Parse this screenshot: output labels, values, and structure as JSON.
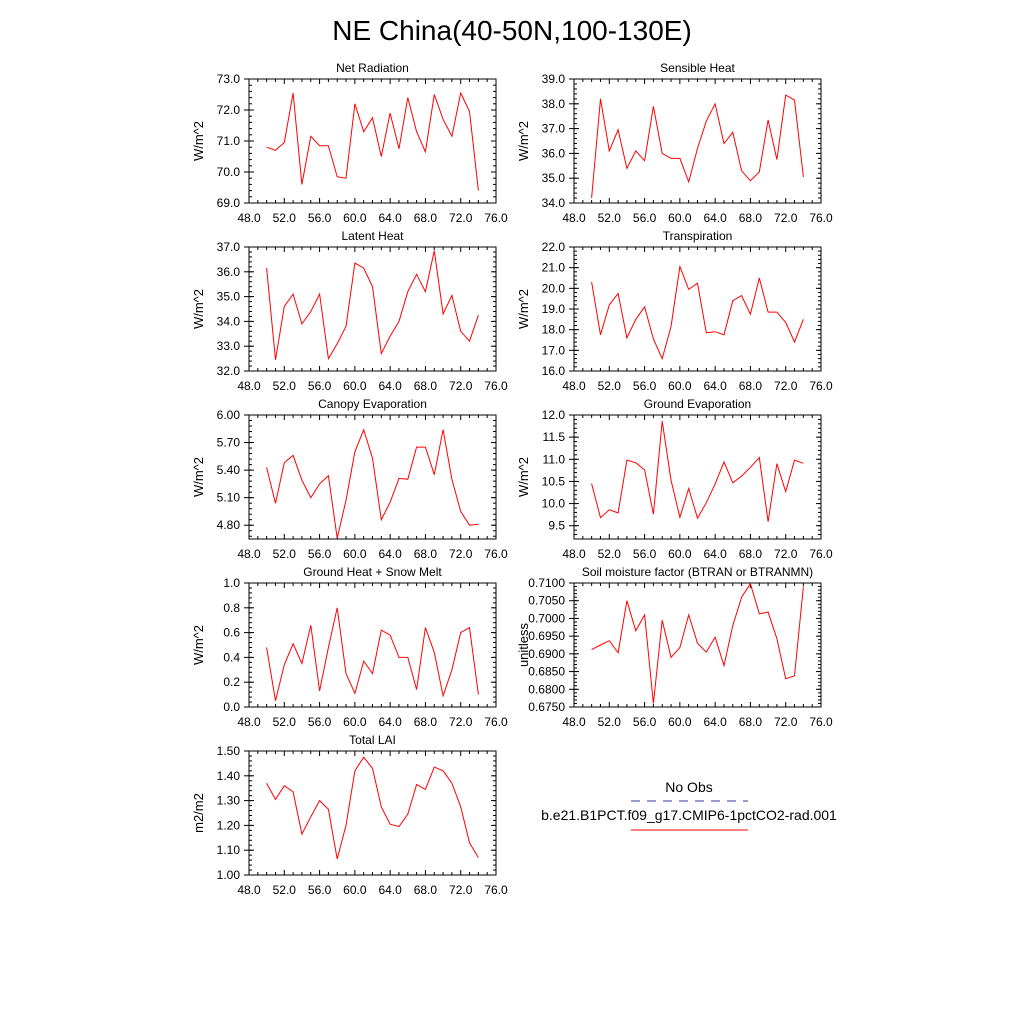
{
  "title": "NE China(40-50N,100-130E)",
  "colors": {
    "model_line": "#ff0000",
    "obs_line": "#3333aa",
    "axis": "#000000"
  },
  "legend": {
    "obs_label": "No Obs",
    "model_label": "b.e21.B1PCT.f09_g17.CMIP6-1pctCO2-rad.001"
  },
  "chart_data": [
    {
      "type": "line",
      "title": "Net Radiation",
      "ylabel": "W/m^2",
      "xlim": [
        48,
        76
      ],
      "ylim": [
        69,
        73
      ],
      "xticks": [
        "48.0",
        "52.0",
        "56.0",
        "60.0",
        "64.0",
        "68.0",
        "72.0",
        "76.0"
      ],
      "yticks": [
        "69.0",
        "70.0",
        "71.0",
        "72.0",
        "73.0"
      ],
      "x": [
        50,
        51,
        52,
        53,
        54,
        55,
        56,
        57,
        58,
        59,
        60,
        61,
        62,
        63,
        64,
        65,
        66,
        67,
        68,
        69,
        70,
        71,
        72,
        73,
        74
      ],
      "series": [
        {
          "values": [
            70.8,
            70.7,
            70.95,
            72.55,
            69.6,
            71.15,
            70.85,
            70.85,
            69.85,
            69.8,
            72.2,
            71.3,
            71.75,
            70.5,
            71.9,
            70.75,
            72.4,
            71.3,
            70.65,
            72.5,
            71.7,
            71.15,
            72.55,
            71.95,
            69.4
          ]
        }
      ]
    },
    {
      "type": "line",
      "title": "Sensible Heat",
      "ylabel": "W/m^2",
      "xlim": [
        48,
        76
      ],
      "ylim": [
        34,
        39
      ],
      "xticks": [
        "48.0",
        "52.0",
        "56.0",
        "60.0",
        "64.0",
        "68.0",
        "72.0",
        "76.0"
      ],
      "yticks": [
        "34.0",
        "35.0",
        "36.0",
        "37.0",
        "38.0",
        "39.0"
      ],
      "x": [
        50,
        51,
        52,
        53,
        54,
        55,
        56,
        57,
        58,
        59,
        60,
        61,
        62,
        63,
        64,
        65,
        66,
        67,
        68,
        69,
        70,
        71,
        72,
        73,
        74
      ],
      "series": [
        {
          "values": [
            34.2,
            38.2,
            36.1,
            36.95,
            35.4,
            36.1,
            35.7,
            37.9,
            36.0,
            35.8,
            35.8,
            34.85,
            36.2,
            37.3,
            38.0,
            36.4,
            36.85,
            35.3,
            34.9,
            35.25,
            37.35,
            35.75,
            38.35,
            38.15,
            35.05
          ]
        }
      ]
    },
    {
      "type": "line",
      "title": "Latent Heat",
      "ylabel": "W/m^2",
      "xlim": [
        48,
        76
      ],
      "ylim": [
        32,
        37
      ],
      "xticks": [
        "48.0",
        "52.0",
        "56.0",
        "60.0",
        "64.0",
        "68.0",
        "72.0",
        "76.0"
      ],
      "yticks": [
        "32.0",
        "33.0",
        "34.0",
        "35.0",
        "36.0",
        "37.0"
      ],
      "x": [
        50,
        51,
        52,
        53,
        54,
        55,
        56,
        57,
        58,
        59,
        60,
        61,
        62,
        63,
        64,
        65,
        66,
        67,
        68,
        69,
        70,
        71,
        72,
        73,
        74
      ],
      "series": [
        {
          "values": [
            36.15,
            32.45,
            34.6,
            35.1,
            33.9,
            34.4,
            35.1,
            32.5,
            33.1,
            33.8,
            36.35,
            36.15,
            35.4,
            32.7,
            33.4,
            34.0,
            35.2,
            35.9,
            35.2,
            36.85,
            34.3,
            35.05,
            33.6,
            33.2,
            34.25
          ]
        }
      ]
    },
    {
      "type": "line",
      "title": "Transpiration",
      "ylabel": "W/m^2",
      "xlim": [
        48,
        76
      ],
      "ylim": [
        16,
        22
      ],
      "xticks": [
        "48.0",
        "52.0",
        "56.0",
        "60.0",
        "64.0",
        "68.0",
        "72.0",
        "76.0"
      ],
      "yticks": [
        "16.0",
        "17.0",
        "18.0",
        "19.0",
        "20.0",
        "21.0",
        "22.0"
      ],
      "x": [
        50,
        51,
        52,
        53,
        54,
        55,
        56,
        57,
        58,
        59,
        60,
        61,
        62,
        63,
        64,
        65,
        66,
        67,
        68,
        69,
        70,
        71,
        72,
        73,
        74
      ],
      "series": [
        {
          "values": [
            20.3,
            17.75,
            19.2,
            19.75,
            17.6,
            18.5,
            19.1,
            17.55,
            16.6,
            18.15,
            21.05,
            19.95,
            20.25,
            17.85,
            17.9,
            17.75,
            19.4,
            19.65,
            18.75,
            20.5,
            18.85,
            18.85,
            18.35,
            17.4,
            18.5
          ]
        }
      ]
    },
    {
      "type": "line",
      "title": "Canopy Evaporation",
      "ylabel": "W/m^2",
      "xlim": [
        48,
        76
      ],
      "ylim": [
        4.65,
        6.0
      ],
      "xticks": [
        "48.0",
        "52.0",
        "56.0",
        "60.0",
        "64.0",
        "68.0",
        "72.0",
        "76.0"
      ],
      "yticks": [
        "4.80",
        "5.10",
        "5.40",
        "5.70",
        "6.00"
      ],
      "x": [
        50,
        51,
        52,
        53,
        54,
        55,
        56,
        57,
        58,
        59,
        60,
        61,
        62,
        63,
        64,
        65,
        66,
        67,
        68,
        69,
        70,
        71,
        72,
        73,
        74
      ],
      "series": [
        {
          "values": [
            5.43,
            5.04,
            5.48,
            5.56,
            5.29,
            5.1,
            5.25,
            5.34,
            4.66,
            5.07,
            5.6,
            5.84,
            5.53,
            4.86,
            5.05,
            5.31,
            5.3,
            5.65,
            5.65,
            5.35,
            5.84,
            5.3,
            4.95,
            4.8,
            4.81
          ]
        }
      ]
    },
    {
      "type": "line",
      "title": "Ground Evaporation",
      "ylabel": "W/m^2",
      "xlim": [
        48,
        76
      ],
      "ylim": [
        9.2,
        12.0
      ],
      "xticks": [
        "48.0",
        "52.0",
        "56.0",
        "60.0",
        "64.0",
        "68.0",
        "72.0",
        "76.0"
      ],
      "yticks": [
        "9.5",
        "10.0",
        "10.5",
        "11.0",
        "11.5",
        "12.0"
      ],
      "x": [
        50,
        51,
        52,
        53,
        54,
        55,
        56,
        57,
        58,
        59,
        60,
        61,
        62,
        63,
        64,
        65,
        66,
        67,
        68,
        69,
        70,
        71,
        72,
        73,
        74
      ],
      "series": [
        {
          "values": [
            10.45,
            9.68,
            9.86,
            9.79,
            10.98,
            10.92,
            10.76,
            9.76,
            11.86,
            10.53,
            9.69,
            10.34,
            9.67,
            10.02,
            10.44,
            10.94,
            10.47,
            10.62,
            10.82,
            11.04,
            9.59,
            10.9,
            10.27,
            10.98,
            10.91
          ]
        }
      ]
    },
    {
      "type": "line",
      "title": "Ground Heat + Snow Melt",
      "ylabel": "W/m^2",
      "xlim": [
        48,
        76
      ],
      "ylim": [
        0,
        1
      ],
      "xticks": [
        "48.0",
        "52.0",
        "56.0",
        "60.0",
        "64.0",
        "68.0",
        "72.0",
        "76.0"
      ],
      "yticks": [
        "0.0",
        "0.2",
        "0.4",
        "0.6",
        "0.8",
        "1.0"
      ],
      "x": [
        50,
        51,
        52,
        53,
        54,
        55,
        56,
        57,
        58,
        59,
        60,
        61,
        62,
        63,
        64,
        65,
        66,
        67,
        68,
        69,
        70,
        71,
        72,
        73,
        74
      ],
      "series": [
        {
          "values": [
            0.48,
            0.05,
            0.34,
            0.51,
            0.35,
            0.66,
            0.13,
            0.48,
            0.8,
            0.27,
            0.11,
            0.37,
            0.27,
            0.62,
            0.58,
            0.4,
            0.4,
            0.14,
            0.64,
            0.44,
            0.09,
            0.3,
            0.6,
            0.64,
            0.1
          ]
        }
      ]
    },
    {
      "type": "line",
      "title": "Soil moisture factor (BTRAN or BTRANMN)",
      "ylabel": "unitless",
      "xlim": [
        48,
        76
      ],
      "ylim": [
        0.675,
        0.71
      ],
      "xticks": [
        "48.0",
        "52.0",
        "56.0",
        "60.0",
        "64.0",
        "68.0",
        "72.0",
        "76.0"
      ],
      "yticks": [
        "0.6750",
        "0.6800",
        "0.6850",
        "0.6900",
        "0.6950",
        "0.7000",
        "0.7050",
        "0.7100"
      ],
      "x": [
        50,
        51,
        52,
        53,
        54,
        55,
        56,
        57,
        58,
        59,
        60,
        61,
        62,
        63,
        64,
        65,
        66,
        67,
        68,
        69,
        70,
        71,
        72,
        73,
        74
      ],
      "series": [
        {
          "values": [
            0.6912,
            0.6925,
            0.6937,
            0.6903,
            0.705,
            0.6965,
            0.701,
            0.676,
            0.6995,
            0.689,
            0.6918,
            0.701,
            0.693,
            0.6905,
            0.6947,
            0.6867,
            0.698,
            0.706,
            0.7098,
            0.7013,
            0.7018,
            0.6943,
            0.683,
            0.6838,
            0.709
          ]
        }
      ]
    },
    {
      "type": "line",
      "title": "Total LAI",
      "ylabel": "m2/m2",
      "xlim": [
        48,
        76
      ],
      "ylim": [
        1.0,
        1.5
      ],
      "xticks": [
        "48.0",
        "52.0",
        "56.0",
        "60.0",
        "64.0",
        "68.0",
        "72.0",
        "76.0"
      ],
      "yticks": [
        "1.00",
        "1.10",
        "1.20",
        "1.30",
        "1.40",
        "1.50"
      ],
      "x": [
        50,
        51,
        52,
        53,
        54,
        55,
        56,
        57,
        58,
        59,
        60,
        61,
        62,
        63,
        64,
        65,
        66,
        67,
        68,
        69,
        70,
        71,
        72,
        73,
        74
      ],
      "series": [
        {
          "values": [
            1.37,
            1.305,
            1.36,
            1.335,
            1.165,
            1.235,
            1.3,
            1.265,
            1.065,
            1.2,
            1.42,
            1.475,
            1.43,
            1.275,
            1.205,
            1.195,
            1.245,
            1.365,
            1.345,
            1.435,
            1.42,
            1.37,
            1.275,
            1.13,
            1.07
          ]
        }
      ]
    }
  ]
}
